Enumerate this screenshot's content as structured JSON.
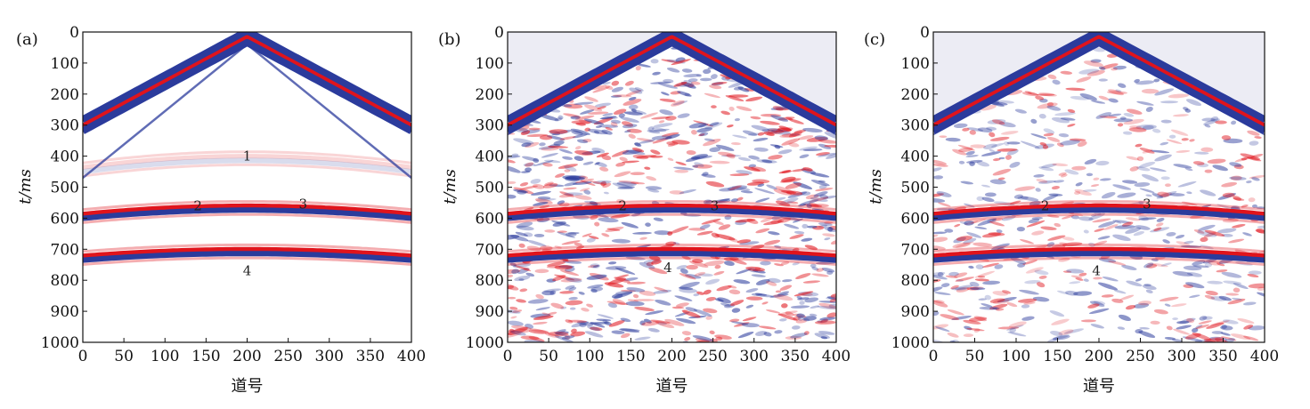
{
  "chart_data": [
    {
      "type": "heatmap",
      "panel_label": "(a)",
      "xlabel": "道号",
      "ylabel": "t/ms",
      "xlim": [
        0,
        400
      ],
      "ylim": [
        0,
        1000
      ],
      "y_inverted": true,
      "x_ticks": [
        0,
        50,
        100,
        150,
        200,
        250,
        300,
        350,
        400
      ],
      "y_ticks": [
        0,
        100,
        200,
        300,
        400,
        500,
        600,
        700,
        800,
        900,
        1000
      ],
      "annotations": [
        {
          "text": "1",
          "x": 200,
          "y": 400
        },
        {
          "text": "2",
          "x": 140,
          "y": 560
        },
        {
          "text": "3",
          "x": 268,
          "y": 555
        },
        {
          "text": "4",
          "x": 200,
          "y": 770
        }
      ],
      "events": [
        {
          "type": "linear",
          "x0": 200,
          "t0": 0,
          "t_edge": 285
        },
        {
          "type": "hyperbolic",
          "x0": 200,
          "t0": 400
        },
        {
          "type": "hyperbolic",
          "x0": 200,
          "t0": 560
        },
        {
          "type": "hyperbolic",
          "x0": 200,
          "t0": 700
        }
      ],
      "noise": "none"
    },
    {
      "type": "heatmap",
      "panel_label": "(b)",
      "xlabel": "道号",
      "ylabel": "t/ms",
      "xlim": [
        0,
        400
      ],
      "ylim": [
        0,
        1000
      ],
      "y_inverted": true,
      "x_ticks": [
        0,
        50,
        100,
        150,
        200,
        250,
        300,
        350,
        400
      ],
      "y_ticks": [
        0,
        100,
        200,
        300,
        400,
        500,
        600,
        700,
        800,
        900,
        1000
      ],
      "annotations": [
        {
          "text": "2",
          "x": 140,
          "y": 560
        },
        {
          "text": "3",
          "x": 252,
          "y": 560
        },
        {
          "text": "4",
          "x": 195,
          "y": 760
        }
      ],
      "events": [
        {
          "type": "linear",
          "x0": 200,
          "t0": 0,
          "t_edge": 285
        },
        {
          "type": "hyperbolic",
          "x0": 200,
          "t0": 560
        },
        {
          "type": "hyperbolic",
          "x0": 200,
          "t0": 700
        }
      ],
      "noise": "strong"
    },
    {
      "type": "heatmap",
      "panel_label": "(c)",
      "xlabel": "道号",
      "ylabel": "t/ms",
      "xlim": [
        0,
        400
      ],
      "ylim": [
        0,
        1000
      ],
      "y_inverted": true,
      "x_ticks": [
        0,
        50,
        100,
        150,
        200,
        250,
        300,
        350,
        400
      ],
      "y_ticks": [
        0,
        100,
        200,
        300,
        400,
        500,
        600,
        700,
        800,
        900,
        1000
      ],
      "annotations": [
        {
          "text": "2",
          "x": 135,
          "y": 560
        },
        {
          "text": "3",
          "x": 258,
          "y": 555
        },
        {
          "text": "4",
          "x": 197,
          "y": 770
        }
      ],
      "events": [
        {
          "type": "linear",
          "x0": 200,
          "t0": 0,
          "t_edge": 285
        },
        {
          "type": "hyperbolic",
          "x0": 200,
          "t0": 560
        },
        {
          "type": "hyperbolic",
          "x0": 200,
          "t0": 700
        }
      ],
      "noise": "moderate"
    }
  ],
  "colors": {
    "negative": "#2b3b9c",
    "positive": "#e0141c",
    "background": "#ffffff",
    "muted_zone": "#ececf4",
    "axis": "#111111"
  }
}
